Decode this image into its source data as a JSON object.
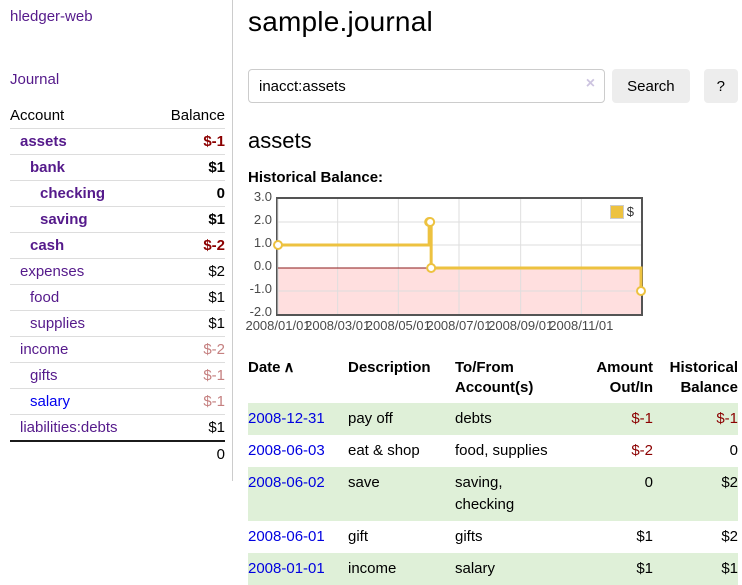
{
  "app": {
    "title": "hledger-web"
  },
  "sidebar": {
    "journal_link": "Journal",
    "accounts": {
      "header": {
        "account": "Account",
        "balance": "Balance"
      },
      "rows": [
        {
          "name": "assets",
          "depth": 0,
          "bold": true,
          "balance": "$-1",
          "balance_tone": "negative"
        },
        {
          "name": "bank",
          "depth": 1,
          "bold": true,
          "balance": "$1",
          "balance_tone": "normal"
        },
        {
          "name": "checking",
          "depth": 2,
          "bold": true,
          "balance": "0",
          "balance_tone": "normal"
        },
        {
          "name": "saving",
          "depth": 2,
          "bold": true,
          "balance": "$1",
          "balance_tone": "normal"
        },
        {
          "name": "cash",
          "depth": 1,
          "bold": true,
          "balance": "$-2",
          "balance_tone": "negative"
        },
        {
          "name": "expenses",
          "depth": 0,
          "bold": false,
          "balance": "$2",
          "balance_tone": "normal"
        },
        {
          "name": "food",
          "depth": 1,
          "bold": false,
          "balance": "$1",
          "balance_tone": "normal"
        },
        {
          "name": "supplies",
          "depth": 1,
          "bold": false,
          "balance": "$1",
          "balance_tone": "normal"
        },
        {
          "name": "income",
          "depth": 0,
          "bold": false,
          "balance": "$-2",
          "balance_tone": "negative-dim"
        },
        {
          "name": "gifts",
          "depth": 1,
          "bold": false,
          "balance": "$-1",
          "balance_tone": "negative-dim"
        },
        {
          "name": "salary",
          "depth": 1,
          "bold": false,
          "link_tone": "blue",
          "balance": "$-1",
          "balance_tone": "negative-dim"
        },
        {
          "name": "liabilities:debts",
          "depth": 0,
          "bold": false,
          "balance": "$1",
          "balance_tone": "normal"
        }
      ],
      "total": "0"
    }
  },
  "main": {
    "title": "sample.journal",
    "search": {
      "value": "inacct:assets",
      "button": "Search",
      "help": "?"
    },
    "heading": "assets",
    "chart_title": "Historical Balance:"
  },
  "icons": {
    "clear": "×",
    "sort_asc": "∧"
  },
  "colors": {
    "accent_purple": "#551a8b",
    "link_blue": "#0000ee",
    "negative_red": "#8b0000",
    "negative_dim_red": "#c58080",
    "row_shade_green": "#dff0d8",
    "chart_series_gold": "#edc240",
    "chart_negative_fill": "#ffdfdf",
    "chart_zero_line": "#8b1a1a",
    "chart_border": "#545454"
  },
  "chart_data": {
    "type": "line",
    "style": "steps",
    "title": "Historical Balance:",
    "series": [
      {
        "name": "$",
        "color": "#edc240",
        "points": [
          [
            "2008-01-01",
            1
          ],
          [
            "2008-06-01",
            2
          ],
          [
            "2008-06-02",
            2
          ],
          [
            "2008-06-03",
            0
          ],
          [
            "2008-12-31",
            -1
          ]
        ]
      }
    ],
    "xlim": [
      "2008-01-01",
      "2008-12-31"
    ],
    "ylim": [
      -2,
      3
    ],
    "x_ticks": [
      {
        "date": "2008-01-01",
        "label": "2008/01/01"
      },
      {
        "date": "2008-03-01",
        "label": "2008/03/01"
      },
      {
        "date": "2008-05-01",
        "label": "2008/05/01"
      },
      {
        "date": "2008-07-01",
        "label": "2008/07/01"
      },
      {
        "date": "2008-09-01",
        "label": "2008/09/01"
      },
      {
        "date": "2008-11-01",
        "label": "2008/11/01"
      }
    ],
    "y_ticks": [
      "3.0",
      "2.0",
      "1.0",
      "0.0",
      "-1.0",
      "-2.0"
    ],
    "legend": {
      "position": "top-right",
      "label": "$"
    },
    "grid": true,
    "negative_region": {
      "from": 0,
      "to": -2,
      "color": "#ffdfdf"
    },
    "zero_line_color": "#8b1a1a"
  },
  "register": {
    "columns": {
      "date": "Date",
      "description": "Description",
      "accounts": "To/From Account(s)",
      "amount": "Amount Out/In",
      "balance": "Historical Balance"
    },
    "rows": [
      {
        "date": "2008-12-31",
        "description": "pay off",
        "accounts": "debts",
        "amount": "$-1",
        "balance": "$-1",
        "amount_negative": true,
        "balance_negative": true,
        "shaded": true
      },
      {
        "date": "2008-06-03",
        "description": "eat & shop",
        "accounts": "food, supplies",
        "amount": "$-2",
        "balance": "0",
        "amount_negative": true,
        "balance_negative": false,
        "shaded": false
      },
      {
        "date": "2008-06-02",
        "description": "save",
        "accounts": "saving,\nchecking",
        "amount": "0",
        "balance": "$2",
        "amount_negative": false,
        "balance_negative": false,
        "shaded": true
      },
      {
        "date": "2008-06-01",
        "description": "gift",
        "accounts": "gifts",
        "amount": "$1",
        "balance": "$2",
        "amount_negative": false,
        "balance_negative": false,
        "shaded": false
      },
      {
        "date": "2008-01-01",
        "description": "income",
        "accounts": "salary",
        "amount": "$1",
        "balance": "$1",
        "amount_negative": false,
        "balance_negative": false,
        "shaded": true
      }
    ]
  }
}
